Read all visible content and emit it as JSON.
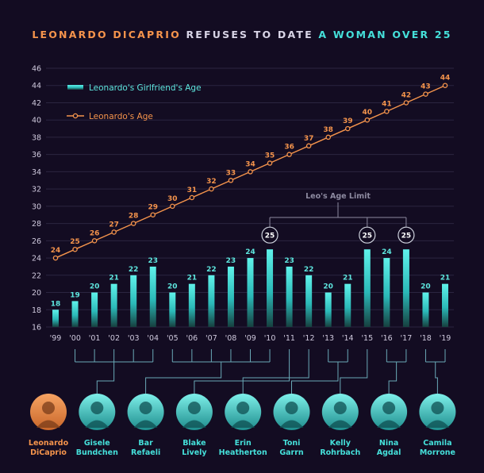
{
  "title": {
    "part1": "LEONARDO DICAPRIO",
    "part2": " REFUSES TO DATE ",
    "part3": "A WOMAN OVER 25"
  },
  "colors": {
    "background": "#130c22",
    "accent_orange": "#f5944c",
    "accent_teal": "#45e0da",
    "grid": "#2b2540",
    "connector": "#6aa9b7"
  },
  "chart_data": {
    "type": "bar",
    "categories": [
      "'99",
      "'00",
      "'01",
      "'02",
      "'03",
      "'04",
      "'05",
      "'06",
      "'07",
      "'08",
      "'09",
      "'10",
      "'11",
      "'12",
      "'13",
      "'14",
      "'15",
      "'16",
      "'17",
      "'18",
      "'19"
    ],
    "series": [
      {
        "name": "Leonardo's Girlfriend's Age",
        "type": "bar",
        "values": [
          18,
          19,
          20,
          21,
          22,
          23,
          20,
          21,
          22,
          23,
          24,
          25,
          23,
          22,
          20,
          21,
          25,
          24,
          25,
          20,
          21
        ]
      },
      {
        "name": "Leonardo's Age",
        "type": "line",
        "values": [
          24,
          25,
          26,
          27,
          28,
          29,
          30,
          31,
          32,
          33,
          34,
          35,
          36,
          37,
          38,
          39,
          40,
          41,
          42,
          43,
          44
        ]
      }
    ],
    "ylim": [
      16,
      46
    ],
    "yticks": [
      16,
      18,
      20,
      22,
      24,
      26,
      28,
      30,
      32,
      34,
      36,
      38,
      40,
      42,
      44,
      46
    ],
    "grid": true,
    "legend_position": "top-left",
    "annotation": "Leo's Age Limit",
    "highlighted_categories": [
      "'10",
      "'15",
      "'17"
    ]
  },
  "people": [
    {
      "name": "Leonardo\nDiCaprio",
      "years": [],
      "highlight": true
    },
    {
      "name": "Gisele\nBundchen",
      "years": [
        "'00",
        "'01",
        "'02",
        "'03",
        "'04"
      ]
    },
    {
      "name": "Bar\nRefaeli",
      "years": [
        "'05",
        "'06",
        "'07",
        "'08",
        "'09",
        "'10"
      ]
    },
    {
      "name": "Blake\nLively",
      "years": [
        "'11"
      ]
    },
    {
      "name": "Erin\nHeatherton",
      "years": [
        "'12"
      ]
    },
    {
      "name": "Toni\nGarrn",
      "years": [
        "'13",
        "'14"
      ]
    },
    {
      "name": "Kelly\nRohrbach",
      "years": [
        "'15"
      ]
    },
    {
      "name": "Nina\nAgdal",
      "years": [
        "'16",
        "'17"
      ]
    },
    {
      "name": "Camila\nMorrone",
      "years": [
        "'18",
        "'19"
      ]
    }
  ],
  "icons": {
    "avatar": "person-portrait-icon"
  }
}
